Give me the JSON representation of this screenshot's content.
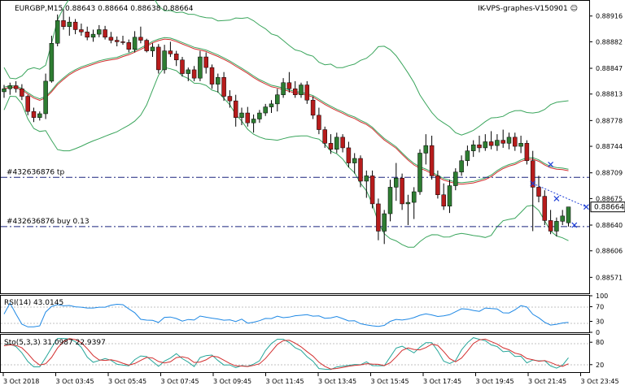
{
  "header": {
    "symbol_info": "EURGBP,M15  0.88643 0.88664 0.88638 0.88664",
    "server": "IK-VPS-graphes-V150901 ☺"
  },
  "orders": [
    {
      "label": "#432636876 tp",
      "price": 0.88703
    },
    {
      "label": "#432636876 buy 0.13",
      "price": 0.88638
    }
  ],
  "current_price": {
    "label": "0.88664",
    "value": 0.88664
  },
  "colors": {
    "bull": "#2e7d32",
    "bear": "#b71c1c",
    "ma": "#d32f2f",
    "bands": "#3aa55c",
    "rsi": "#1e88e5",
    "stoch_main": "#26a69a",
    "stoch_signal": "#d32f2f",
    "order_line": "#1a237e",
    "price_box": "#ffffff"
  },
  "price_axis": {
    "min": 0.88551,
    "max": 0.88935,
    "ticks": [
      "0.88916",
      "0.88882",
      "0.88847",
      "0.88813",
      "0.88778",
      "0.88744",
      "0.88709",
      "0.88675",
      "0.88640",
      "0.88606",
      "0.88571"
    ]
  },
  "rsi": {
    "label": "RSI(14) 43.0145",
    "ticks": [
      "100",
      "70",
      "30",
      "0"
    ]
  },
  "stoch": {
    "label": "Sto(5,3,3) 31.0987 22.9397",
    "ticks": [
      "80",
      "20"
    ]
  },
  "time_axis": [
    "3 Oct 2018",
    "3 Oct 03:45",
    "3 Oct 05:45",
    "3 Oct 07:45",
    "3 Oct 09:45",
    "3 Oct 11:45",
    "3 Oct 13:45",
    "3 Oct 15:45",
    "3 Oct 17:45",
    "3 Oct 19:45",
    "3 Oct 21:45",
    "3 Oct 23:45"
  ],
  "chart_data": {
    "type": "candlestick",
    "candles": [
      [
        0.88816,
        0.88825,
        0.88808,
        0.8882
      ],
      [
        0.8882,
        0.88828,
        0.88812,
        0.88824
      ],
      [
        0.88824,
        0.8883,
        0.88815,
        0.8882
      ],
      [
        0.8882,
        0.88826,
        0.88805,
        0.8881
      ],
      [
        0.8881,
        0.88812,
        0.88785,
        0.8879
      ],
      [
        0.8879,
        0.88795,
        0.88776,
        0.88782
      ],
      [
        0.88782,
        0.8879,
        0.88778,
        0.88787
      ],
      [
        0.88787,
        0.8884,
        0.8878,
        0.8883
      ],
      [
        0.8883,
        0.8889,
        0.88828,
        0.8888
      ],
      [
        0.8888,
        0.88918,
        0.88876,
        0.8891
      ],
      [
        0.8891,
        0.88925,
        0.88898,
        0.88902
      ],
      [
        0.88902,
        0.88915,
        0.8889,
        0.88908
      ],
      [
        0.88908,
        0.88912,
        0.88892,
        0.88898
      ],
      [
        0.88898,
        0.88906,
        0.8889,
        0.88895
      ],
      [
        0.88895,
        0.88902,
        0.88884,
        0.88888
      ],
      [
        0.88888,
        0.88898,
        0.88882,
        0.88892
      ],
      [
        0.88892,
        0.88904,
        0.88888,
        0.88898
      ],
      [
        0.88898,
        0.88903,
        0.88885,
        0.88888
      ],
      [
        0.88888,
        0.88895,
        0.8888,
        0.88884
      ],
      [
        0.88884,
        0.88889,
        0.88876,
        0.88882
      ],
      [
        0.88882,
        0.8889,
        0.88878,
        0.88881
      ],
      [
        0.88881,
        0.88885,
        0.88868,
        0.88872
      ],
      [
        0.88872,
        0.88896,
        0.88868,
        0.88888
      ],
      [
        0.88888,
        0.88902,
        0.8888,
        0.88884
      ],
      [
        0.88884,
        0.88886,
        0.88868,
        0.8887
      ],
      [
        0.8887,
        0.8888,
        0.88862,
        0.88875
      ],
      [
        0.88875,
        0.88879,
        0.8884,
        0.88845
      ],
      [
        0.88845,
        0.88878,
        0.8884,
        0.8887
      ],
      [
        0.8887,
        0.88882,
        0.88862,
        0.88866
      ],
      [
        0.88866,
        0.8887,
        0.8885,
        0.88858
      ],
      [
        0.88858,
        0.88862,
        0.88836,
        0.8884
      ],
      [
        0.8884,
        0.88848,
        0.8883,
        0.88845
      ],
      [
        0.88845,
        0.8885,
        0.8883,
        0.88834
      ],
      [
        0.88834,
        0.8887,
        0.8883,
        0.88862
      ],
      [
        0.88862,
        0.88868,
        0.8884,
        0.88848
      ],
      [
        0.88848,
        0.88852,
        0.8882,
        0.88826
      ],
      [
        0.88826,
        0.8884,
        0.88815,
        0.88835
      ],
      [
        0.88835,
        0.88842,
        0.88804,
        0.8881
      ],
      [
        0.8881,
        0.88818,
        0.88795,
        0.88804
      ],
      [
        0.88804,
        0.88812,
        0.8877,
        0.88782
      ],
      [
        0.88782,
        0.88795,
        0.88772,
        0.88788
      ],
      [
        0.88788,
        0.88796,
        0.8877,
        0.88775
      ],
      [
        0.88775,
        0.88786,
        0.88762,
        0.8878
      ],
      [
        0.8878,
        0.88792,
        0.88775,
        0.88788
      ],
      [
        0.88788,
        0.888,
        0.88784,
        0.88796
      ],
      [
        0.88796,
        0.88805,
        0.88788,
        0.888
      ],
      [
        0.888,
        0.8882,
        0.8879,
        0.88812
      ],
      [
        0.88812,
        0.88834,
        0.88808,
        0.88828
      ],
      [
        0.88828,
        0.88842,
        0.88815,
        0.8882
      ],
      [
        0.8882,
        0.8883,
        0.88808,
        0.88812
      ],
      [
        0.88812,
        0.88828,
        0.88808,
        0.88825
      ],
      [
        0.88825,
        0.8883,
        0.888,
        0.88805
      ],
      [
        0.88805,
        0.8881,
        0.8878,
        0.88785
      ],
      [
        0.88785,
        0.88795,
        0.8876,
        0.88766
      ],
      [
        0.88766,
        0.8877,
        0.88742,
        0.88748
      ],
      [
        0.88748,
        0.8876,
        0.88734,
        0.8874
      ],
      [
        0.8874,
        0.88762,
        0.88735,
        0.88756
      ],
      [
        0.88756,
        0.8876,
        0.88736,
        0.88742
      ],
      [
        0.88742,
        0.8875,
        0.88716,
        0.88722
      ],
      [
        0.88722,
        0.88735,
        0.88708,
        0.88728
      ],
      [
        0.88728,
        0.88732,
        0.8869,
        0.88698
      ],
      [
        0.88698,
        0.88712,
        0.88676,
        0.88705
      ],
      [
        0.88705,
        0.88712,
        0.88662,
        0.88668
      ],
      [
        0.88668,
        0.88675,
        0.8862,
        0.88632
      ],
      [
        0.88632,
        0.8866,
        0.88615,
        0.88655
      ],
      [
        0.88655,
        0.887,
        0.88645,
        0.8869
      ],
      [
        0.8869,
        0.88722,
        0.88672,
        0.88702
      ],
      [
        0.88702,
        0.88708,
        0.8866,
        0.88668
      ],
      [
        0.88668,
        0.8868,
        0.8864,
        0.8867
      ],
      [
        0.8867,
        0.8869,
        0.88648,
        0.88684
      ],
      [
        0.88684,
        0.8874,
        0.8868,
        0.88735
      ],
      [
        0.88735,
        0.8876,
        0.8872,
        0.88745
      ],
      [
        0.88745,
        0.88758,
        0.887,
        0.88705
      ],
      [
        0.88705,
        0.88712,
        0.88675,
        0.8868
      ],
      [
        0.8868,
        0.88695,
        0.8866,
        0.88665
      ],
      [
        0.88665,
        0.887,
        0.88656,
        0.88692
      ],
      [
        0.88692,
        0.88715,
        0.88686,
        0.8871
      ],
      [
        0.8871,
        0.88732,
        0.88705,
        0.88725
      ],
      [
        0.88725,
        0.88745,
        0.88718,
        0.88738
      ],
      [
        0.88738,
        0.88752,
        0.8873,
        0.88746
      ],
      [
        0.88746,
        0.88758,
        0.88736,
        0.88742
      ],
      [
        0.88742,
        0.8876,
        0.88738,
        0.8875
      ],
      [
        0.8875,
        0.88764,
        0.8874,
        0.88745
      ],
      [
        0.88745,
        0.8876,
        0.88738,
        0.88752
      ],
      [
        0.88752,
        0.88766,
        0.88742,
        0.88748
      ],
      [
        0.88748,
        0.88762,
        0.8874,
        0.88756
      ],
      [
        0.88756,
        0.88762,
        0.88738,
        0.88744
      ],
      [
        0.88744,
        0.88758,
        0.88735,
        0.88748
      ],
      [
        0.88748,
        0.88752,
        0.8872,
        0.88725
      ],
      [
        0.88725,
        0.88738,
        0.88632,
        0.8869
      ],
      [
        0.8869,
        0.88705,
        0.8867,
        0.88678
      ],
      [
        0.88678,
        0.88686,
        0.8864,
        0.88646
      ],
      [
        0.88646,
        0.8866,
        0.88628,
        0.88632
      ],
      [
        0.88632,
        0.8865,
        0.88625,
        0.88645
      ],
      [
        0.88645,
        0.8866,
        0.8864,
        0.88652
      ],
      [
        0.88643,
        0.88664,
        0.88638,
        0.88664
      ]
    ]
  }
}
